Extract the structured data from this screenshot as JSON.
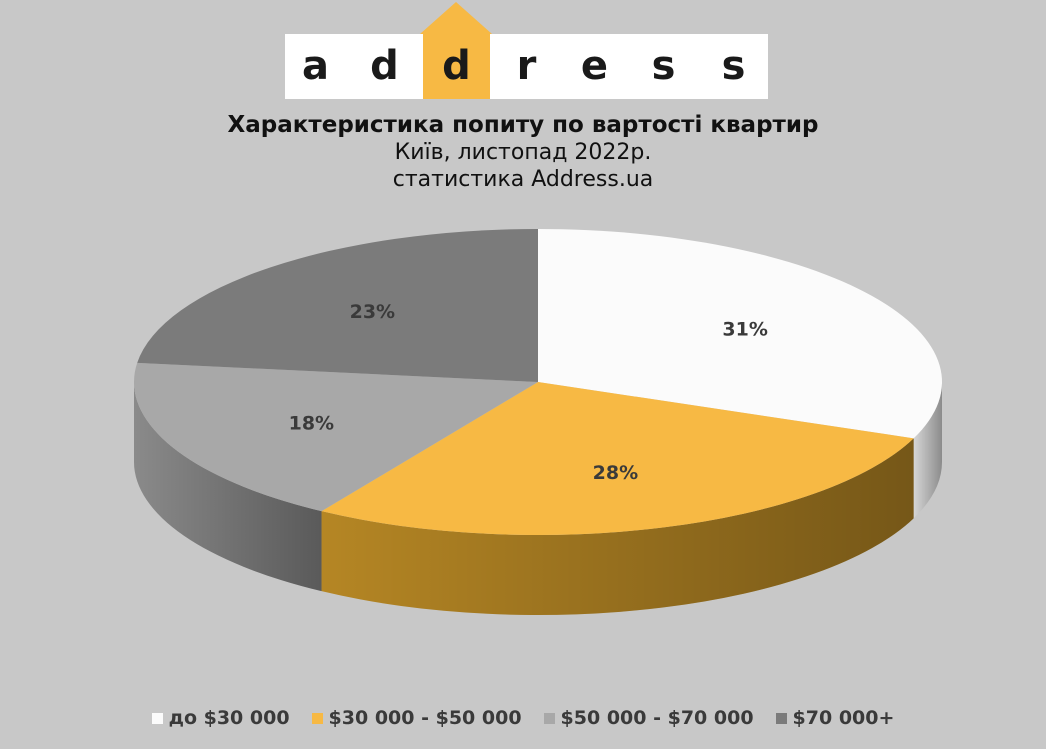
{
  "logo": {
    "letters": [
      "a",
      "d",
      "d",
      "r",
      "e",
      "s",
      "s"
    ],
    "colors": {
      "bar": "#ffffff",
      "highlight": "#f7b944"
    }
  },
  "chart_data": {
    "type": "pie",
    "title": "Характеристика попиту по вартості квартир",
    "subtitle": "Київ, листопад 2022р.",
    "subtitle2": "статистика Address.ua",
    "categories": [
      "до $30 000",
      "$30 000 - $50 000",
      "$50 000 - $70 000",
      "$70 000+"
    ],
    "values": [
      31,
      28,
      18,
      23
    ],
    "labels": [
      "31%",
      "28%",
      "18%",
      "23%"
    ],
    "colors": [
      "#fbfbfb",
      "#f7b944",
      "#a8a8a8",
      "#7b7b7b"
    ],
    "side_colors": [
      "#d6d6d6",
      "#b58624",
      "#8a8a8a",
      "#6a6a6a"
    ],
    "legend_position": "bottom",
    "style": "3d"
  }
}
